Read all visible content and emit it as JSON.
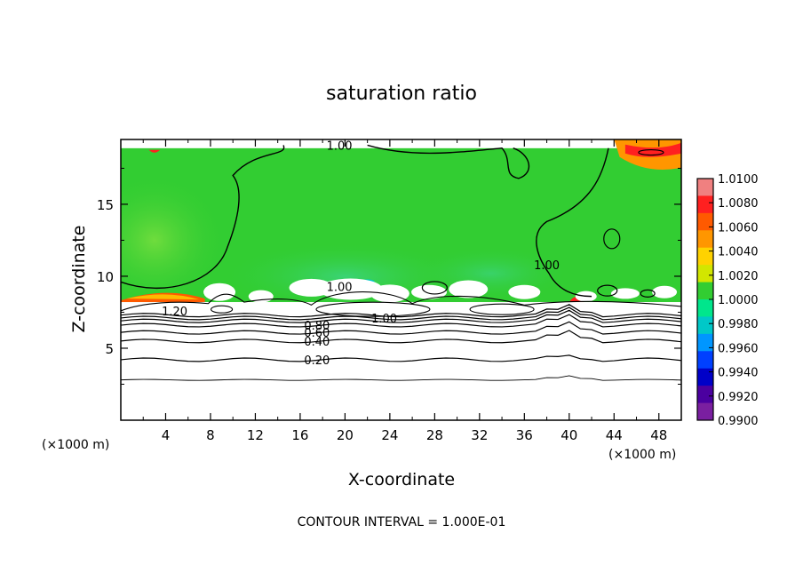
{
  "chart_data": {
    "type": "heatmap",
    "title": "saturation ratio",
    "xlabel": "X-coordinate",
    "ylabel": "Z-coordinate",
    "x_unit": "(×1000 m)",
    "footer": "CONTOUR INTERVAL = 1.000E-01",
    "xlim": [
      0,
      50
    ],
    "ylim": [
      0,
      19.5
    ],
    "x_ticks": [
      "4",
      "8",
      "12",
      "16",
      "20",
      "24",
      "28",
      "32",
      "36",
      "40",
      "44",
      "48"
    ],
    "y_ticks": [
      "5",
      "10",
      "15"
    ],
    "colorbar": {
      "min": 0.99,
      "max": 1.01,
      "tick_labels": [
        "1.0100",
        "1.0080",
        "1.0060",
        "1.0040",
        "1.0020",
        "1.0000",
        "0.9980",
        "0.9960",
        "0.9940",
        "0.9920",
        "0.9900"
      ],
      "colors": [
        "#f08080",
        "#ff2020",
        "#ff5a00",
        "#ff9600",
        "#ffd200",
        "#d2e600",
        "#32cd32",
        "#00e68c",
        "#00c8c8",
        "#0096ff",
        "#0040ff",
        "#0000c8",
        "#4b00a0",
        "#7a1fa0"
      ]
    },
    "contour_interval": 0.1,
    "contour_labels": [
      {
        "label": "1.00",
        "x": 19.5,
        "z": 19.1
      },
      {
        "label": "1.00",
        "x": 38.0,
        "z": 10.8
      },
      {
        "label": "1.00",
        "x": 19.5,
        "z": 9.3
      },
      {
        "label": "1.00",
        "x": 23.5,
        "z": 7.1
      },
      {
        "label": "1.20",
        "x": 4.8,
        "z": 7.6
      },
      {
        "label": "0.80",
        "x": 17.5,
        "z": 6.6
      },
      {
        "label": "0.60",
        "x": 17.5,
        "z": 6.1
      },
      {
        "label": "0.40",
        "x": 17.5,
        "z": 5.5
      },
      {
        "label": "0.20",
        "x": 17.5,
        "z": 4.2
      }
    ],
    "contour_levels_z": [
      {
        "level": 0.2,
        "z": 4.2
      },
      {
        "level": 0.4,
        "z": 5.5
      },
      {
        "level": 0.6,
        "z": 6.1
      },
      {
        "level": 0.8,
        "z": 6.6
      }
    ],
    "lower_line_z": 2.8,
    "cloud_base_z": 8.2,
    "top_z": 18.9
  }
}
